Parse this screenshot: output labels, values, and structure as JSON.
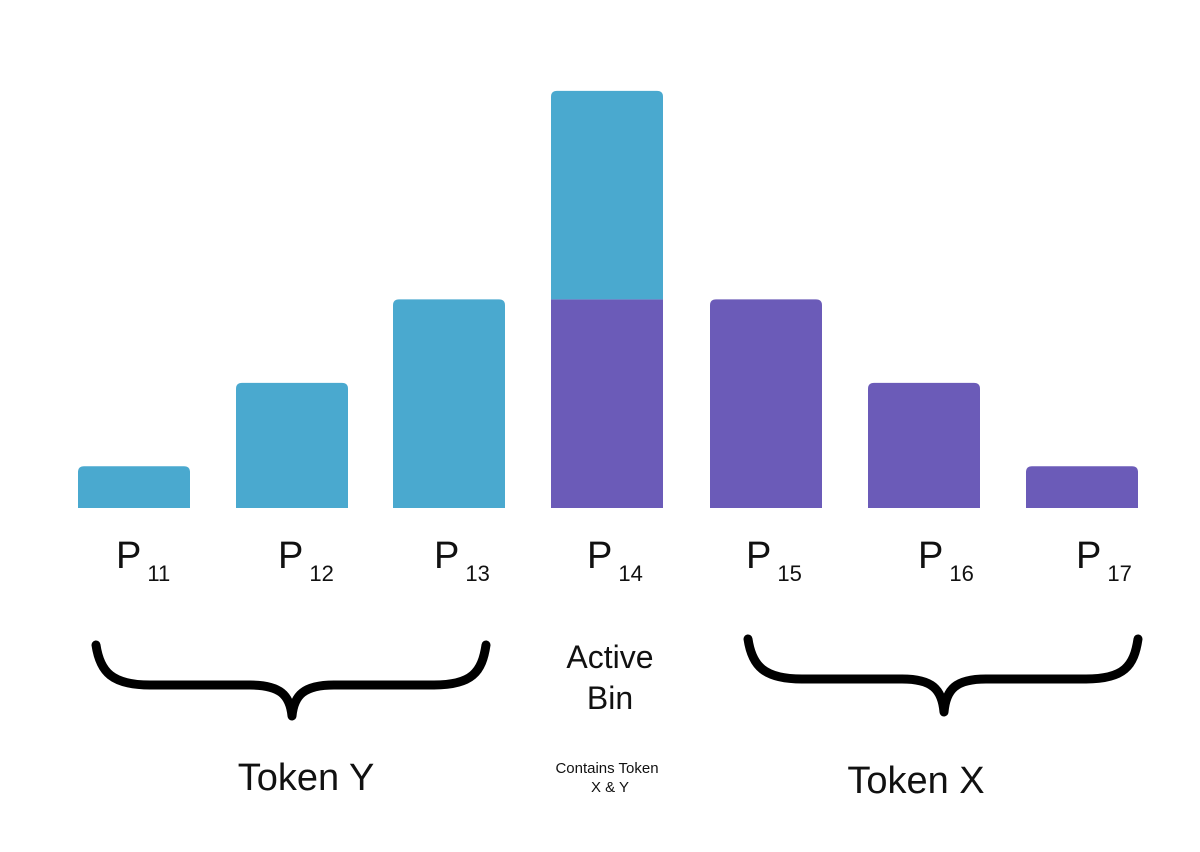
{
  "chart_data": {
    "type": "bar",
    "stacked": true,
    "grid": false,
    "categories": [
      "P11",
      "P12",
      "P13",
      "P14",
      "P15",
      "P16",
      "P17"
    ],
    "category_labels": [
      {
        "base": "P",
        "sub": "11"
      },
      {
        "base": "P",
        "sub": "12"
      },
      {
        "base": "P",
        "sub": "13"
      },
      {
        "base": "P",
        "sub": "14"
      },
      {
        "base": "P",
        "sub": "15"
      },
      {
        "base": "P",
        "sub": "16"
      },
      {
        "base": "P",
        "sub": "17"
      }
    ],
    "series": [
      {
        "key": "token_y",
        "values": [
          1,
          3,
          5,
          5,
          0,
          0,
          0
        ],
        "color": "#4aa9cf"
      },
      {
        "key": "token_x",
        "values": [
          0,
          0,
          0,
          5,
          5,
          3,
          1
        ],
        "color": "#6b5bb8"
      }
    ],
    "ylim": [
      0,
      10.5
    ],
    "brackets": [
      {
        "key": "token_y",
        "from": "P11",
        "to": "P13",
        "label": "Token Y"
      },
      {
        "key": "token_x",
        "from": "P15",
        "to": "P17",
        "label": "Token X"
      }
    ],
    "active_bin": {
      "category": "P14",
      "label_lines": [
        "Active",
        "Bin"
      ],
      "note_lines": [
        "Contains Token",
        "X & Y"
      ]
    }
  }
}
